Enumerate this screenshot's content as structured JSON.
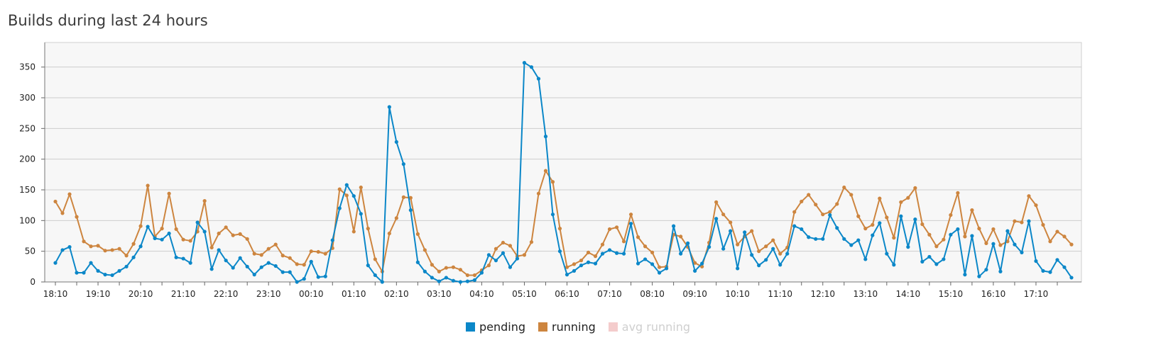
{
  "title": "Builds during last 24 hours",
  "legend": [
    {
      "label": "pending",
      "color": "#0b87c8",
      "hidden": false
    },
    {
      "label": "running",
      "color": "#cd853f",
      "hidden": false
    },
    {
      "label": "avg running",
      "color": "#f4cccc",
      "hidden": true
    }
  ],
  "chart_data": {
    "type": "line",
    "title": "Builds during last 24 hours",
    "xlabel": "",
    "ylabel": "",
    "ylim": [
      0,
      390
    ],
    "yticks": [
      0,
      50,
      100,
      150,
      200,
      250,
      300,
      350
    ],
    "xtick_labels": [
      "18:10",
      "19:10",
      "20:10",
      "21:10",
      "22:10",
      "23:10",
      "00:10",
      "01:10",
      "02:10",
      "03:10",
      "04:10",
      "05:10",
      "06:10",
      "07:10",
      "08:10",
      "09:10",
      "10:10",
      "11:10",
      "12:10",
      "13:10",
      "14:10",
      "15:10",
      "16:10",
      "17:10"
    ],
    "grid": true,
    "legend_position": "bottom",
    "series": [
      {
        "name": "pending",
        "color": "#0b87c8",
        "values": [
          31,
          52,
          57,
          15,
          15,
          31,
          18,
          12,
          11,
          18,
          25,
          40,
          58,
          90,
          71,
          69,
          79,
          40,
          38,
          31,
          97,
          82,
          21,
          52,
          35,
          23,
          39,
          25,
          12,
          24,
          31,
          26,
          16,
          16,
          0,
          5,
          33,
          8,
          9,
          68,
          120,
          158,
          140,
          111,
          27,
          11,
          0,
          285,
          228,
          192,
          117,
          32,
          17,
          7,
          1,
          7,
          2,
          0,
          1,
          3,
          15,
          44,
          35,
          47,
          24,
          38,
          357,
          350,
          331,
          237,
          110,
          50,
          12,
          18,
          27,
          32,
          30,
          46,
          52,
          47,
          46,
          95,
          30,
          37,
          29,
          15,
          22,
          91,
          46,
          63,
          18,
          30,
          57,
          103,
          54,
          83,
          22,
          81,
          44,
          27,
          36,
          54,
          28,
          46,
          91,
          86,
          73,
          70,
          70,
          109,
          88,
          70,
          60,
          68,
          37,
          76,
          96,
          46,
          28,
          107,
          57,
          102,
          33,
          41,
          29,
          37,
          77,
          86,
          12,
          75,
          9,
          20,
          62,
          17,
          83,
          61,
          48,
          99,
          34,
          18,
          16,
          36,
          24,
          7
        ]
      },
      {
        "name": "running",
        "color": "#cd853f",
        "values": [
          131,
          112,
          143,
          106,
          66,
          58,
          59,
          51,
          52,
          54,
          43,
          62,
          91,
          157,
          74,
          87,
          144,
          86,
          69,
          67,
          82,
          132,
          56,
          79,
          89,
          76,
          78,
          70,
          46,
          44,
          54,
          61,
          43,
          39,
          29,
          28,
          50,
          49,
          46,
          55,
          151,
          141,
          82,
          154,
          87,
          37,
          17,
          79,
          104,
          138,
          137,
          78,
          52,
          28,
          17,
          23,
          24,
          20,
          11,
          11,
          19,
          27,
          54,
          64,
          59,
          42,
          44,
          65,
          144,
          181,
          163,
          87,
          24,
          29,
          35,
          48,
          42,
          61,
          86,
          89,
          66,
          110,
          73,
          58,
          48,
          24,
          25,
          77,
          74,
          57,
          31,
          25,
          64,
          130,
          110,
          97,
          61,
          74,
          83,
          50,
          58,
          68,
          46,
          56,
          114,
          131,
          142,
          126,
          110,
          114,
          127,
          154,
          142,
          107,
          87,
          93,
          136,
          105,
          72,
          130,
          137,
          153,
          94,
          77,
          58,
          69,
          109,
          145,
          74,
          117,
          87,
          63,
          86,
          60,
          66,
          99,
          97,
          140,
          125,
          93,
          66,
          82,
          74,
          61
        ]
      }
    ]
  }
}
